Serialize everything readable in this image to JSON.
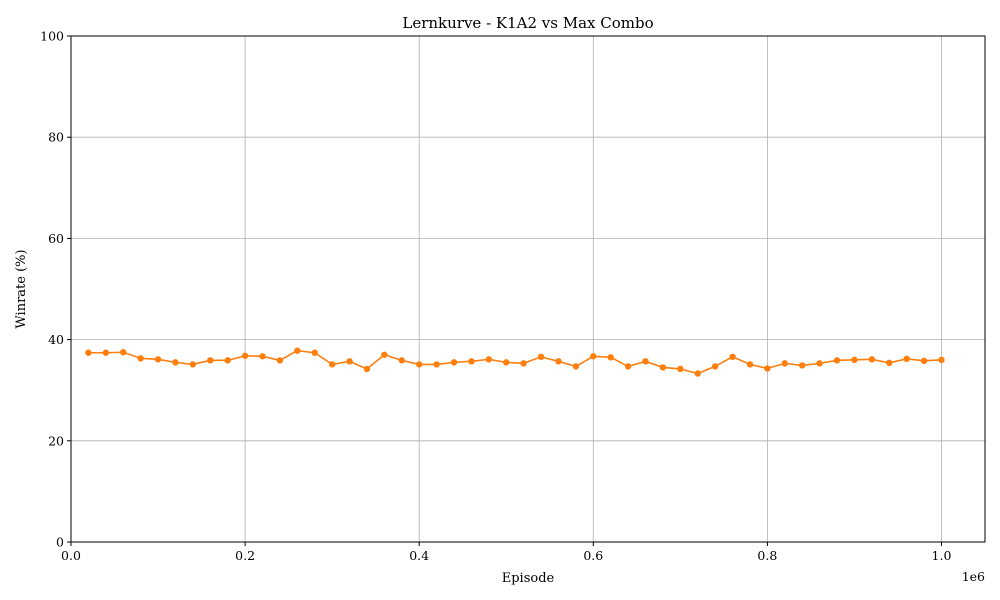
{
  "chart_data": {
    "type": "line",
    "title": "Lernkurve - K1A2 vs Max Combo",
    "xlabel": "Episode",
    "ylabel": "Winrate (%)",
    "x_scale_label": "1e6",
    "xlim": [
      0,
      1050000
    ],
    "ylim": [
      0,
      100
    ],
    "x_ticks": [
      0,
      200000,
      400000,
      600000,
      800000,
      1000000
    ],
    "x_tick_labels": [
      "0.0",
      "0.2",
      "0.4",
      "0.6",
      "0.8",
      "1.0"
    ],
    "y_ticks": [
      0,
      20,
      40,
      60,
      80,
      100
    ],
    "y_tick_labels": [
      "0",
      "20",
      "40",
      "60",
      "80",
      "100"
    ],
    "grid": true,
    "series": [
      {
        "color": "#ff7f0e",
        "marker": "circle",
        "x": [
          20000,
          40000,
          60000,
          80000,
          100000,
          120000,
          140000,
          160000,
          180000,
          200000,
          220000,
          240000,
          260000,
          280000,
          300000,
          320000,
          340000,
          360000,
          380000,
          400000,
          420000,
          440000,
          460000,
          480000,
          500000,
          520000,
          540000,
          560000,
          580000,
          600000,
          620000,
          640000,
          660000,
          680000,
          700000,
          720000,
          740000,
          760000,
          780000,
          800000,
          820000,
          840000,
          860000,
          880000,
          900000,
          920000,
          940000,
          960000,
          980000,
          1000000
        ],
        "y": [
          37.4,
          37.4,
          37.5,
          36.3,
          36.1,
          35.5,
          35.1,
          35.9,
          35.9,
          36.8,
          36.7,
          35.9,
          37.8,
          37.4,
          35.1,
          35.7,
          34.2,
          37.0,
          35.9,
          35.1,
          35.1,
          35.5,
          35.7,
          36.1,
          35.5,
          35.3,
          36.6,
          35.7,
          34.7,
          36.7,
          36.5,
          34.7,
          35.7,
          34.5,
          34.2,
          33.3,
          34.7,
          36.6,
          35.1,
          34.3,
          35.3,
          34.9,
          35.3,
          35.9,
          36.0,
          36.1,
          35.4,
          36.2,
          35.8,
          36.0
        ]
      }
    ]
  }
}
